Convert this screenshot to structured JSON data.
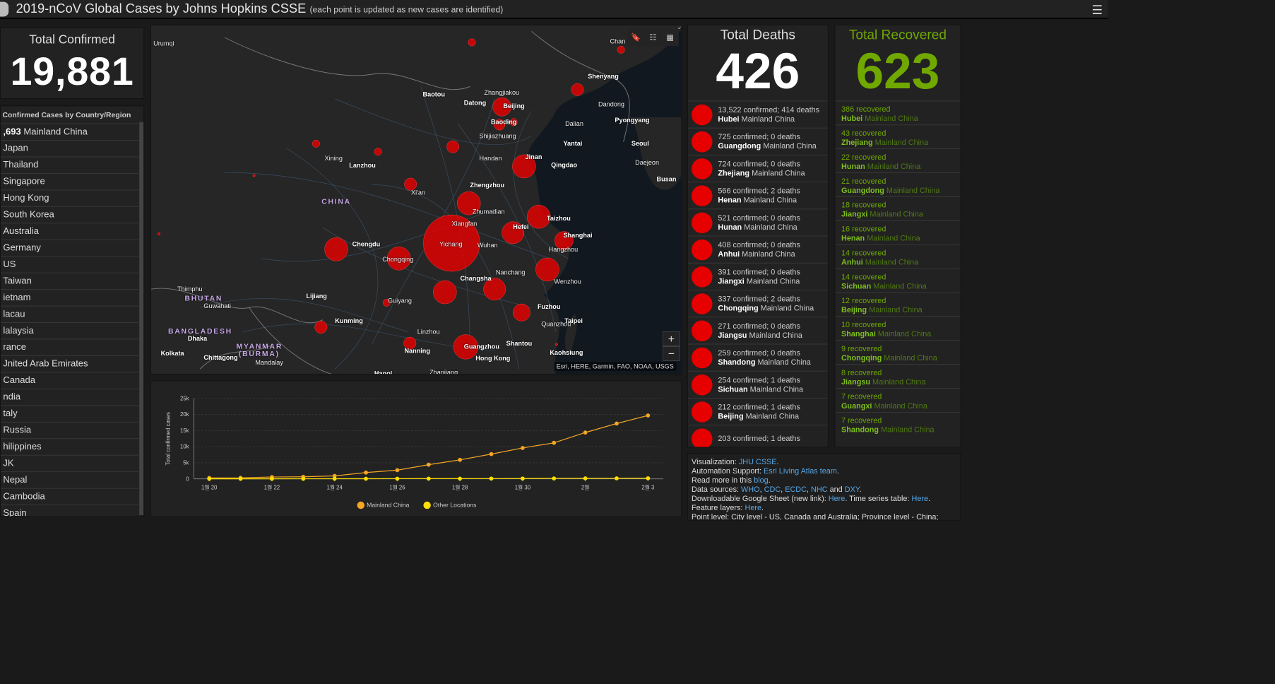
{
  "header": {
    "title": "2019-nCoV Global Cases by Johns Hopkins CSSE",
    "subtitle": "(each point is updated as new cases are identified)"
  },
  "total": {
    "label": "Total Confirmed",
    "value": "19,881"
  },
  "countries": {
    "heading": "Confirmed Cases by Country/Region",
    "rows": [
      {
        "count": ",693",
        "name": "Mainland China"
      },
      {
        "count": "",
        "name": "Japan"
      },
      {
        "count": "",
        "name": "Thailand"
      },
      {
        "count": "",
        "name": "Singapore"
      },
      {
        "count": "",
        "name": "Hong Kong"
      },
      {
        "count": "",
        "name": "South Korea"
      },
      {
        "count": "",
        "name": "Australia"
      },
      {
        "count": "",
        "name": "Germany"
      },
      {
        "count": "",
        "name": "US"
      },
      {
        "count": "",
        "name": "Taiwan"
      },
      {
        "count": "",
        "name": "ietnam"
      },
      {
        "count": "",
        "name": "lacau"
      },
      {
        "count": "",
        "name": "lalaysia"
      },
      {
        "count": "",
        "name": "rance"
      },
      {
        "count": "",
        "name": "Jnited Arab Emirates"
      },
      {
        "count": "",
        "name": "Canada"
      },
      {
        "count": "",
        "name": "ndia"
      },
      {
        "count": "",
        "name": "taly"
      },
      {
        "count": "",
        "name": "Russia"
      },
      {
        "count": "",
        "name": "hilippines"
      },
      {
        "count": "",
        "name": "JK"
      },
      {
        "count": "",
        "name": "Nepal"
      },
      {
        "count": "",
        "name": "Cambodia"
      },
      {
        "count": "",
        "name": "Spain"
      }
    ]
  },
  "deaths": {
    "label": "Total Deaths",
    "value": "426",
    "rows": [
      {
        "confirmed": "13,522",
        "deaths": "414",
        "place": "Hubei",
        "region": "Mainland China"
      },
      {
        "confirmed": "725",
        "deaths": "0",
        "place": "Guangdong",
        "region": "Mainland China"
      },
      {
        "confirmed": "724",
        "deaths": "0",
        "place": "Zhejiang",
        "region": "Mainland China"
      },
      {
        "confirmed": "566",
        "deaths": "2",
        "place": "Henan",
        "region": "Mainland China"
      },
      {
        "confirmed": "521",
        "deaths": "0",
        "place": "Hunan",
        "region": "Mainland China"
      },
      {
        "confirmed": "408",
        "deaths": "0",
        "place": "Anhui",
        "region": "Mainland China"
      },
      {
        "confirmed": "391",
        "deaths": "0",
        "place": "Jiangxi",
        "region": "Mainland China"
      },
      {
        "confirmed": "337",
        "deaths": "2",
        "place": "Chongqing",
        "region": "Mainland China"
      },
      {
        "confirmed": "271",
        "deaths": "0",
        "place": "Jiangsu",
        "region": "Mainland China"
      },
      {
        "confirmed": "259",
        "deaths": "0",
        "place": "Shandong",
        "region": "Mainland China"
      },
      {
        "confirmed": "254",
        "deaths": "1",
        "place": "Sichuan",
        "region": "Mainland China"
      },
      {
        "confirmed": "212",
        "deaths": "1",
        "place": "Beijing",
        "region": "Mainland China"
      },
      {
        "confirmed": "203",
        "deaths": "1",
        "place": "",
        "region": ""
      }
    ]
  },
  "recovered": {
    "label": "Total Recovered",
    "value": "623",
    "rows": [
      {
        "count": "386 recovered",
        "place": "Hubei",
        "region": "Mainland China"
      },
      {
        "count": "43 recovered",
        "place": "Zhejiang",
        "region": "Mainland China"
      },
      {
        "count": "22 recovered",
        "place": "Hunan",
        "region": "Mainland China"
      },
      {
        "count": "21 recovered",
        "place": "Guangdong",
        "region": "Mainland China"
      },
      {
        "count": "18 recovered",
        "place": "Jiangxi",
        "region": "Mainland China"
      },
      {
        "count": "16 recovered",
        "place": "Henan",
        "region": "Mainland China"
      },
      {
        "count": "14 recovered",
        "place": "Anhui",
        "region": "Mainland China"
      },
      {
        "count": "14 recovered",
        "place": "Sichuan",
        "region": "Mainland China"
      },
      {
        "count": "12 recovered",
        "place": "Beijing",
        "region": "Mainland China"
      },
      {
        "count": "10 recovered",
        "place": "Shanghai",
        "region": "Mainland China"
      },
      {
        "count": "9 recovered",
        "place": "Chongqing",
        "region": "Mainland China"
      },
      {
        "count": "8 recovered",
        "place": "Jiangsu",
        "region": "Mainland China"
      },
      {
        "count": "7 recovered",
        "place": "Guangxi",
        "region": "Mainland China"
      },
      {
        "count": "7 recovered",
        "place": "Shandong",
        "region": "Mainland China"
      }
    ]
  },
  "info": {
    "visualization": "Visualization:",
    "visualization_link": "JHU CSSE",
    "automation": "Automation Support:",
    "automation_link": "Esri Living Atlas team",
    "readmore": "Read more in this",
    "readmore_link": "blog",
    "sources": "Data sources:",
    "src1": "WHO",
    "src2": "CDC",
    "src3": "ECDC",
    "src4": "NHC",
    "src_and": "and",
    "src5": "DXY",
    "sheet": "Downloadable Google Sheet (new link):",
    "here1": "Here",
    "timeseries": "Time series table:",
    "here2": "Here",
    "feature": "Feature layers:",
    "here3": "Here",
    "pointlevel": "Point level: City level - US, Canada and Australia; Province level - China;"
  },
  "map": {
    "attribution": "Esri, HERE, Garmin, FAO, NOAA, USGS",
    "zoom_in": "+",
    "zoom_out": "−",
    "labels": [
      {
        "text": "Urumqi"
      },
      {
        "text": "Baotou"
      },
      {
        "text": "Zhangjiakou"
      },
      {
        "text": "Datong"
      },
      {
        "text": "Beijing"
      },
      {
        "text": "Baoding"
      },
      {
        "text": "Shijiazhuang"
      },
      {
        "text": "Shenyang"
      },
      {
        "text": "Dandong"
      },
      {
        "text": "Pyongyang"
      },
      {
        "text": "Dalian"
      },
      {
        "text": "Yantai"
      },
      {
        "text": "Seoul"
      },
      {
        "text": "Daejeon"
      },
      {
        "text": "Busan"
      },
      {
        "text": "Jinan"
      },
      {
        "text": "Handan"
      },
      {
        "text": "Qingdao"
      },
      {
        "text": "Xining"
      },
      {
        "text": "Lanzhou"
      },
      {
        "text": "Zhengzhou"
      },
      {
        "text": "Xi'an"
      },
      {
        "text": "CHINA"
      },
      {
        "text": "Zhumadian"
      },
      {
        "text": "Xiangfan"
      },
      {
        "text": "Yichang"
      },
      {
        "text": "Wuhan"
      },
      {
        "text": "Hefei"
      },
      {
        "text": "Taizhou"
      },
      {
        "text": "Shanghai"
      },
      {
        "text": "Hangzhou"
      },
      {
        "text": "Chengdu"
      },
      {
        "text": "Chongqing"
      },
      {
        "text": "Nanchang"
      },
      {
        "text": "Changsha"
      },
      {
        "text": "Wenzhou"
      },
      {
        "text": "Thimphu"
      },
      {
        "text": "BHUTAN"
      },
      {
        "text": "Guwahati"
      },
      {
        "text": "Lijiang"
      },
      {
        "text": "Guiyang"
      },
      {
        "text": "Fuzhou"
      },
      {
        "text": "Kunming"
      },
      {
        "text": "Quanzhou"
      },
      {
        "text": "Taipei"
      },
      {
        "text": "BANGLADESH"
      },
      {
        "text": "Dhaka"
      },
      {
        "text": "MYANMAR"
      },
      {
        "text": "(BURMA)"
      },
      {
        "text": "Linzhou"
      },
      {
        "text": "Nanning"
      },
      {
        "text": "Guangzhou"
      },
      {
        "text": "Shantou"
      },
      {
        "text": "Kaohsiung"
      },
      {
        "text": "Hong Kong"
      },
      {
        "text": "Kolkata"
      },
      {
        "text": "Chittagong"
      },
      {
        "text": "Mandalay"
      },
      {
        "text": "Hanoi"
      },
      {
        "text": "Zhanjiang"
      },
      {
        "text": "Chan"
      }
    ]
  },
  "chart_data": {
    "type": "line",
    "ylabel": "Total confirmed cases",
    "xlabel": "",
    "ylim": [
      0,
      25000
    ],
    "yticks": [
      "0",
      "5k",
      "10k",
      "15k",
      "20k",
      "25k"
    ],
    "categories": [
      "1월 20",
      "1월 21",
      "1월 22",
      "1월 23",
      "1월 24",
      "1월 25",
      "1월 26",
      "1월 27",
      "1월 28",
      "1월 29",
      "1월 30",
      "1월 31",
      "2월",
      "2월 2",
      "2월 3"
    ],
    "xtick_labels": [
      "1월 20",
      "1월 22",
      "1월 24",
      "1월 26",
      "1월 28",
      "1월 30",
      "2월",
      "2월 3"
    ],
    "series": [
      {
        "name": "Mainland China",
        "color": "#f5a623",
        "values": [
          280,
          310,
          570,
          640,
          920,
          1950,
          2700,
          4400,
          5900,
          7700,
          9600,
          11200,
          14400,
          17200,
          19700
        ]
      },
      {
        "name": "Other Locations",
        "color": "#ffe000",
        "values": [
          4,
          10,
          14,
          20,
          30,
          40,
          50,
          60,
          70,
          80,
          100,
          130,
          150,
          160,
          180
        ]
      }
    ]
  },
  "colors": {
    "case_dot": "#e60000",
    "recovered": "#70a800",
    "link": "#56a8e8"
  }
}
